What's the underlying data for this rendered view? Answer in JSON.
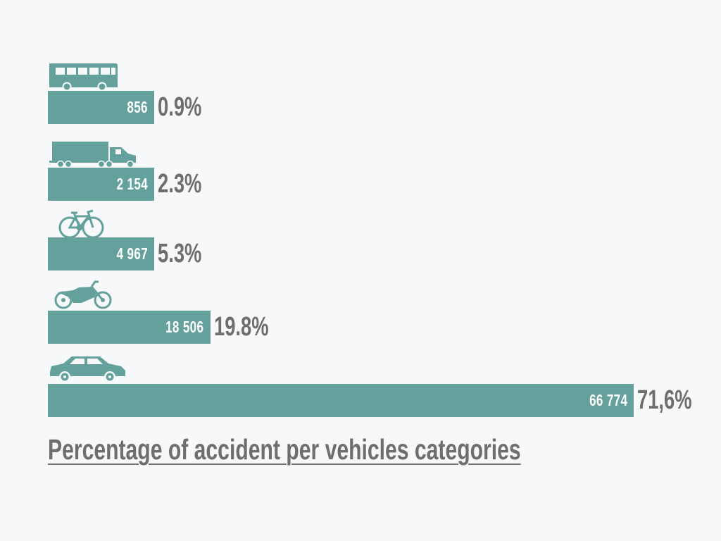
{
  "colors": {
    "bar": "#64a19d",
    "text": "#6e6e6e",
    "background": "#f6f8fa"
  },
  "chart_data": {
    "type": "bar",
    "orientation": "horizontal",
    "title": "Percentage of accident per vehicles categories",
    "categories": [
      "bus",
      "truck",
      "bicycle",
      "motorcycle",
      "car"
    ],
    "series": [
      {
        "values": [
          856,
          2154,
          4967,
          18506,
          66774
        ],
        "value_labels": [
          "856",
          "2 154",
          "4 967",
          "18 506",
          "66 774"
        ],
        "percent_labels": [
          "0.9%",
          "2.3%",
          "5.3%",
          "19.8%",
          "71,6%"
        ]
      }
    ],
    "icons": [
      "bus-icon",
      "truck-icon",
      "bicycle-icon",
      "motorcycle-icon",
      "car-icon"
    ],
    "xlim": [
      0,
      66774
    ],
    "grid": false,
    "legend": "none"
  }
}
